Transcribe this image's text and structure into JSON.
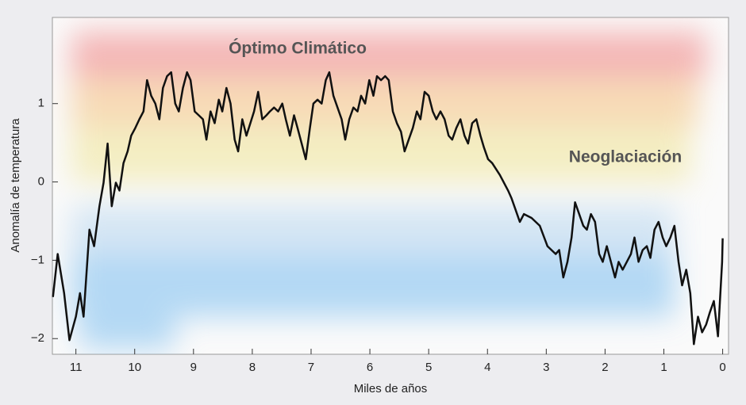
{
  "chart_data": {
    "type": "line",
    "annotations": [
      "Óptimo Climático",
      "Neoglaciación"
    ],
    "xlabel": "Miles de años",
    "ylabel": "Anomalía de temperatura",
    "xlim": [
      11.4,
      -0.1
    ],
    "ylim": [
      -2.2,
      2.1
    ],
    "xticks": [
      11,
      10,
      9,
      8,
      7,
      6,
      5,
      4,
      3,
      2,
      1,
      0
    ],
    "yticks": [
      {
        "value": -2,
        "label": "−2"
      },
      {
        "value": -1,
        "label": "−1"
      },
      0,
      1
    ],
    "series": [
      {
        "color": "#111111",
        "x": [
          11.39,
          11.31,
          11.2,
          11.11,
          11.0,
          10.93,
          10.87,
          10.77,
          10.69,
          10.6,
          10.53,
          10.46,
          10.39,
          10.32,
          10.26,
          10.19,
          10.12,
          10.06,
          9.99,
          9.92,
          9.85,
          9.79,
          9.72,
          9.65,
          9.58,
          9.52,
          9.45,
          9.38,
          9.31,
          9.25,
          9.18,
          9.11,
          9.05,
          8.98,
          8.91,
          8.84,
          8.78,
          8.71,
          8.64,
          8.57,
          8.51,
          8.44,
          8.37,
          8.3,
          8.24,
          8.17,
          8.1,
          7.97,
          7.9,
          7.83,
          7.76,
          7.7,
          7.63,
          7.56,
          7.49,
          7.43,
          7.36,
          7.29,
          7.23,
          7.16,
          7.09,
          7.02,
          6.96,
          6.89,
          6.82,
          6.75,
          6.69,
          6.62,
          6.55,
          6.48,
          6.42,
          6.35,
          6.28,
          6.21,
          6.15,
          6.08,
          6.01,
          5.94,
          5.88,
          5.81,
          5.74,
          5.68,
          5.61,
          5.54,
          5.47,
          5.41,
          5.34,
          5.27,
          5.2,
          5.14,
          5.07,
          5.0,
          4.93,
          4.87,
          4.8,
          4.73,
          4.66,
          4.6,
          4.53,
          4.46,
          4.39,
          4.33,
          4.26,
          4.19,
          4.12,
          4.06,
          3.99,
          3.92,
          3.79,
          3.65,
          3.59,
          3.52,
          3.45,
          3.38,
          3.25,
          3.11,
          2.98,
          2.84,
          2.78,
          2.71,
          2.64,
          2.57,
          2.51,
          2.44,
          2.37,
          2.31,
          2.24,
          2.17,
          2.1,
          2.04,
          1.97,
          1.9,
          1.83,
          1.77,
          1.7,
          1.63,
          1.56,
          1.5,
          1.43,
          1.36,
          1.29,
          1.23,
          1.16,
          1.09,
          1.02,
          0.96,
          0.89,
          0.82,
          0.75,
          0.69,
          0.62,
          0.55,
          0.49,
          0.42,
          0.35,
          0.28,
          0.22,
          0.15,
          0.08,
          0.01,
          0
        ],
        "values": [
          -1.47,
          -0.92,
          -1.42,
          -2.02,
          -1.72,
          -1.42,
          -1.72,
          -0.61,
          -0.82,
          -0.31,
          -0.01,
          0.49,
          -0.31,
          -0.01,
          -0.11,
          0.24,
          0.39,
          0.59,
          0.69,
          0.8,
          0.9,
          1.3,
          1.1,
          1.0,
          0.8,
          1.2,
          1.35,
          1.4,
          1.0,
          0.9,
          1.2,
          1.4,
          1.3,
          0.9,
          0.85,
          0.8,
          0.54,
          0.9,
          0.75,
          1.05,
          0.9,
          1.2,
          1.0,
          0.54,
          0.39,
          0.8,
          0.59,
          0.9,
          1.15,
          0.8,
          0.85,
          0.9,
          0.95,
          0.9,
          1.0,
          0.8,
          0.59,
          0.85,
          0.69,
          0.49,
          0.29,
          0.69,
          1.0,
          1.05,
          1.0,
          1.3,
          1.4,
          1.1,
          0.95,
          0.8,
          0.54,
          0.8,
          0.95,
          0.9,
          1.1,
          1.0,
          1.3,
          1.1,
          1.35,
          1.3,
          1.35,
          1.3,
          0.9,
          0.75,
          0.64,
          0.39,
          0.54,
          0.69,
          0.9,
          0.8,
          1.15,
          1.1,
          0.9,
          0.8,
          0.9,
          0.8,
          0.59,
          0.54,
          0.69,
          0.8,
          0.59,
          0.49,
          0.75,
          0.8,
          0.59,
          0.44,
          0.29,
          0.24,
          0.09,
          -0.11,
          -0.21,
          -0.36,
          -0.51,
          -0.41,
          -0.46,
          -0.56,
          -0.82,
          -0.92,
          -0.87,
          -1.22,
          -1.02,
          -0.71,
          -0.26,
          -0.41,
          -0.56,
          -0.61,
          -0.41,
          -0.51,
          -0.92,
          -1.02,
          -0.82,
          -1.02,
          -1.22,
          -1.02,
          -1.12,
          -1.02,
          -0.92,
          -0.71,
          -1.02,
          -0.87,
          -0.82,
          -0.97,
          -0.61,
          -0.51,
          -0.71,
          -0.82,
          -0.71,
          -0.56,
          -1.02,
          -1.32,
          -1.12,
          -1.42,
          -2.07,
          -1.72,
          -1.92,
          -1.82,
          -1.67,
          -1.52,
          -1.97,
          -1.02,
          -0.72
        ]
      }
    ]
  }
}
